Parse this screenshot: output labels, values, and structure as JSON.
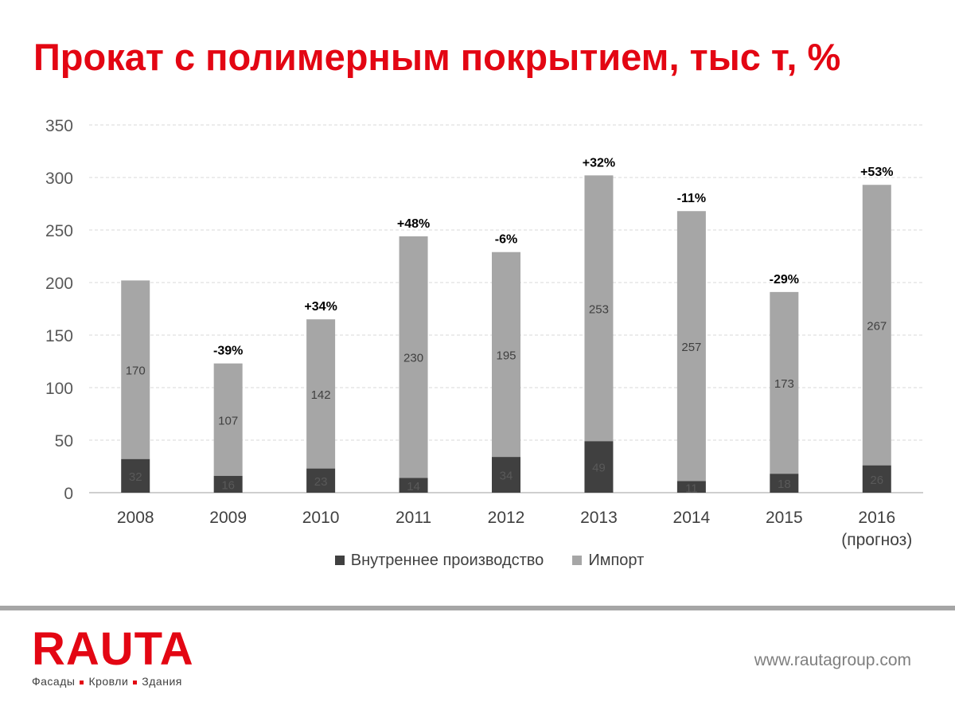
{
  "title": "Прокат с полимерным покрытием, тыс т, %",
  "chart_data": {
    "type": "bar",
    "stacked": true,
    "categories": [
      "2008",
      "2009",
      "2010",
      "2011",
      "2012",
      "2013",
      "2014",
      "2015",
      "2016"
    ],
    "category_sublabels": [
      "",
      "",
      "",
      "",
      "",
      "",
      "",
      "",
      "(прогноз)"
    ],
    "series": [
      {
        "name": "Внутреннее производство",
        "color": "#404040",
        "values": [
          32,
          16,
          23,
          14,
          34,
          49,
          11,
          18,
          26
        ]
      },
      {
        "name": "Импорт",
        "color": "#a6a6a6",
        "values": [
          170,
          107,
          142,
          230,
          195,
          253,
          257,
          173,
          267
        ]
      }
    ],
    "growth_labels": [
      "",
      "-39%",
      "+34%",
      "+48%",
      "-6%",
      "+32%",
      "-11%",
      "-29%",
      "+53%"
    ],
    "ylim": [
      0,
      350
    ],
    "yticks": [
      0,
      50,
      100,
      150,
      200,
      250,
      300,
      350
    ],
    "grid": true,
    "legend_position": "bottom"
  },
  "footer": {
    "logo_text": "RAUTA",
    "tagline": [
      "Фасады",
      "Кровли",
      "Здания"
    ],
    "website": "www.rautagroup.com"
  }
}
